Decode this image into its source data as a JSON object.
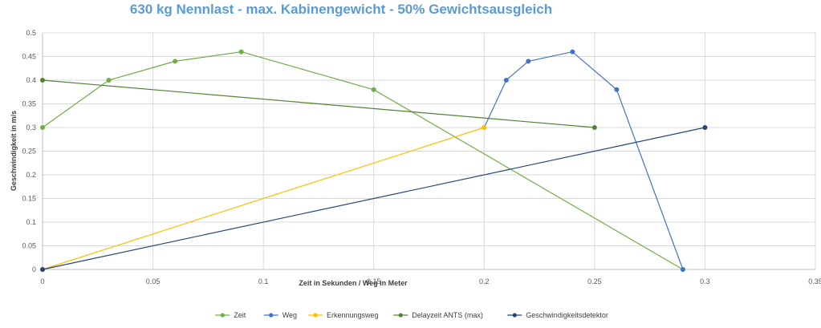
{
  "chart_data": {
    "type": "scatter",
    "title": "630 kg Nennlast - max. Kabinengewicht - 50% Gewichtsausgleich",
    "xlabel": "Zeit in Sekunden / Weg in Meter",
    "ylabel": "Geschwindigkeit in m/s",
    "xlim": [
      0,
      0.35
    ],
    "ylim": [
      0,
      0.5
    ],
    "x_ticks": [
      "0",
      "0.05",
      "0.1",
      "0.15",
      "0.2",
      "0.25",
      "0.3",
      "0.35"
    ],
    "y_ticks": [
      "0",
      "0.05",
      "0.1",
      "0.15",
      "0.2",
      "0.25",
      "0.3",
      "0.35",
      "0.4",
      "0.45",
      "0.5"
    ],
    "grid": true,
    "legend_position": "bottom",
    "series": [
      {
        "name": "Zeit",
        "color": "#70AD47",
        "points": [
          [
            0,
            0.3
          ],
          [
            0.03,
            0.4
          ],
          [
            0.06,
            0.44
          ],
          [
            0.09,
            0.46
          ],
          [
            0.15,
            0.38
          ],
          [
            0.29,
            0
          ]
        ]
      },
      {
        "name": "Weg",
        "color": "#4472C4",
        "points": [
          [
            0.2,
            0.3
          ],
          [
            0.21,
            0.4
          ],
          [
            0.22,
            0.44
          ],
          [
            0.24,
            0.46
          ],
          [
            0.26,
            0.38
          ],
          [
            0.29,
            0
          ]
        ]
      },
      {
        "name": "Erkennungsweg",
        "color": "#FFC000",
        "points": [
          [
            0,
            0
          ],
          [
            0.2,
            0.3
          ]
        ]
      },
      {
        "name": "Delayzeit ANTS (max)",
        "color": "#548235",
        "points": [
          [
            0,
            0.4
          ],
          [
            0.25,
            0.3
          ]
        ]
      },
      {
        "name": "Geschwindigkeitsdetektor",
        "color": "#264478",
        "points": [
          [
            0,
            0
          ],
          [
            0.3,
            0.3
          ]
        ]
      }
    ]
  }
}
